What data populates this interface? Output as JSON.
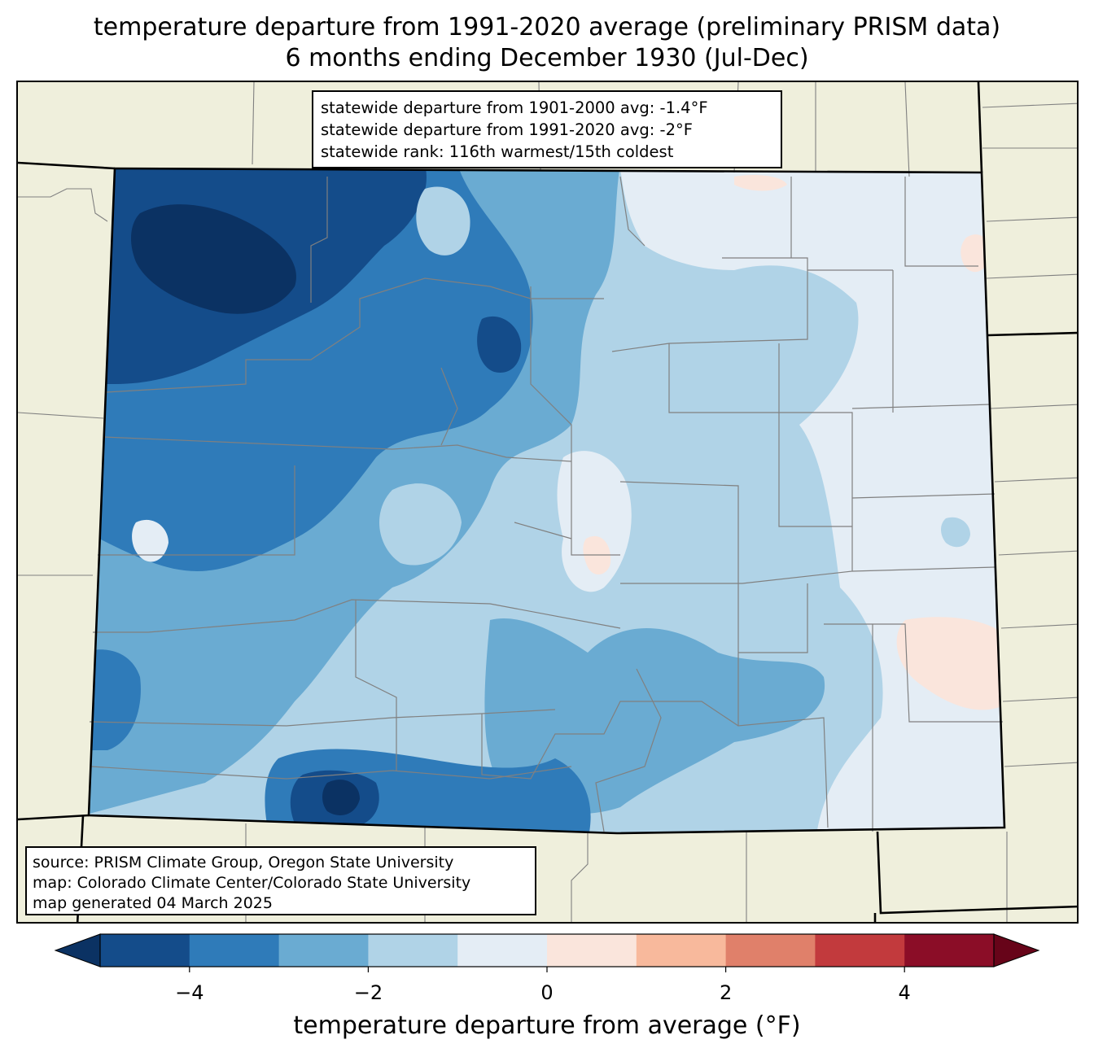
{
  "title": {
    "line1": "temperature departure from 1991-2020 average (preliminary PRISM data)",
    "line2": "6 months ending December 1930 (Jul-Dec)"
  },
  "stats_box": {
    "line1": "statewide departure from 1901-2000 avg: -1.4°F",
    "line2": "statewide departure from 1991-2020 avg: -2°F",
    "line3": "statewide rank: 116th warmest/15th coldest"
  },
  "source_box": {
    "line1": "source: PRISM Climate Group, Oregon State University",
    "line2": "map: Colorado Climate Center/Colorado State University",
    "line3": "map generated 04 March 2025"
  },
  "map_data": {
    "region": "Colorado",
    "pattern": "coldest departures (below -4°F) in the northwest, moderate cold (-3 to -1°F) across the mountains and southwest, near-average (-1 to 0°F) in the eastern plains, small pockets of slight warmth (0 to 1°F) in the east",
    "colors": {
      "land_outside": "#efefdc",
      "county_lines": "#808080",
      "state_lines": "#000000"
    }
  },
  "colorbar": {
    "bins": [
      -5,
      -4,
      -3,
      -2,
      -1,
      0,
      1,
      2,
      3,
      4,
      5
    ],
    "colors": [
      "#144c8a",
      "#2f7bb9",
      "#6aabd2",
      "#b0d3e7",
      "#e4edf5",
      "#fae5dc",
      "#f8b99c",
      "#e0806a",
      "#c23a3d",
      "#8b0d27"
    ],
    "under_color": "#0b3263",
    "over_color": "#670419",
    "tick_values": [
      -4,
      -2,
      0,
      2,
      4
    ],
    "tick_labels": [
      "−4",
      "−2",
      "0",
      "2",
      "4"
    ],
    "label": "temperature departure from average (°F)"
  }
}
